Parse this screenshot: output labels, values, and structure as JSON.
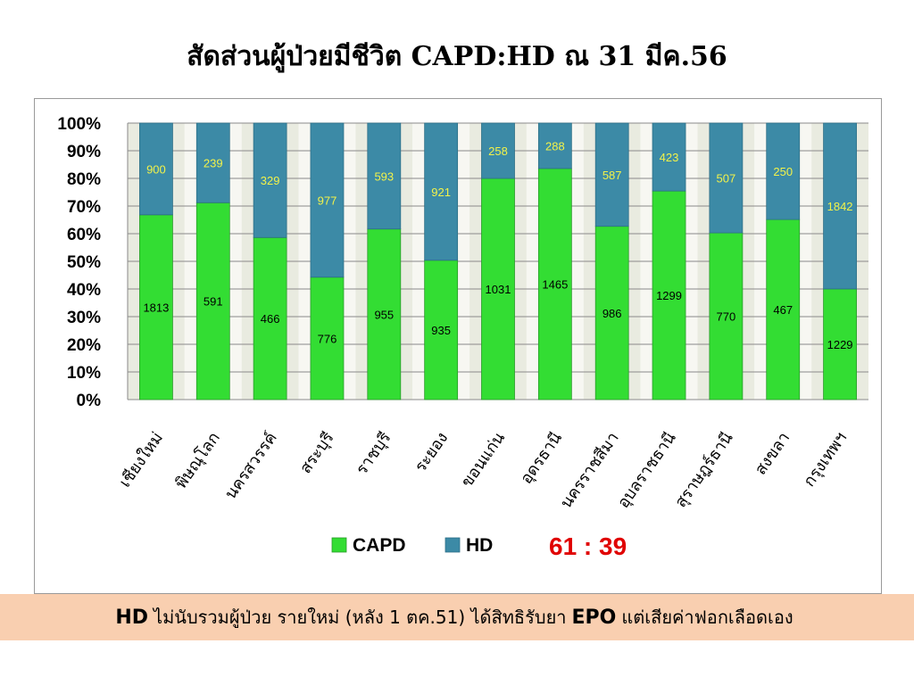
{
  "page_title": "สัดส่วนผู้ป่วยมีชีวิต  CAPD:HD ณ 31 มีค.56",
  "chart_data": {
    "type": "bar",
    "stacked": "percent",
    "categories": [
      "เชียงใหม่",
      "พิษณุโลก",
      "นครสวรรค์",
      "สระบุรี",
      "ราชบุรี",
      "ระยอง",
      "ขอนแก่น",
      "อุดรธานี",
      "นครราชสีมา",
      "อุบลราชธานี",
      "สุราษฎร์ธานี",
      "สงขลา",
      "กรุงเทพฯ"
    ],
    "series": [
      {
        "name": "CAPD",
        "color": "#33dd33",
        "values": [
          1813,
          591,
          466,
          776,
          955,
          935,
          1031,
          1465,
          986,
          1299,
          770,
          467,
          1229
        ]
      },
      {
        "name": "HD",
        "color": "#3c8aa6",
        "values": [
          900,
          239,
          329,
          977,
          593,
          921,
          258,
          288,
          587,
          423,
          507,
          250,
          1842
        ]
      }
    ],
    "yticks": [
      "0%",
      "10%",
      "20%",
      "30%",
      "40%",
      "50%",
      "60%",
      "70%",
      "80%",
      "90%",
      "100%"
    ],
    "ylim": [
      0,
      100
    ],
    "grid": true,
    "legend_position": "bottom",
    "ratio_label": "61 : 39"
  },
  "footnote": {
    "hd": "HD",
    "t1": "ไม่นับรวมผู้ป่วย รายใหม่ (หลัง 1 ตค.51) ได้สิทธิรับยา",
    "epo": "EPO",
    "t2": "แต่เสียค่าฟอกเลือดเอง"
  }
}
